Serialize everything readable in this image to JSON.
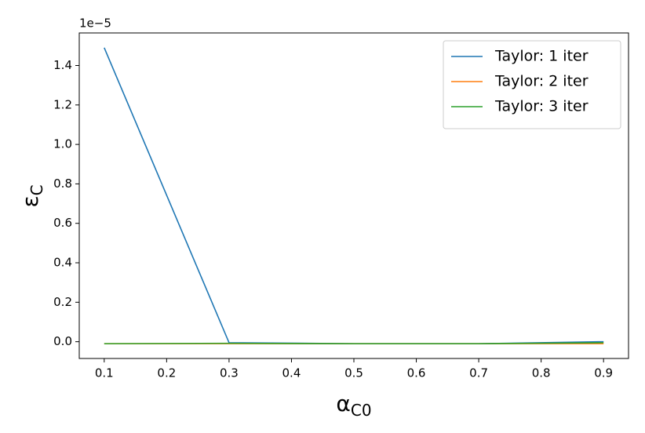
{
  "chart_data": {
    "type": "line",
    "xlabel": {
      "symbol": "α",
      "subscript": "C0"
    },
    "ylabel": {
      "symbol": "ε",
      "subscript": "C"
    },
    "y_offset_label": "1e−5",
    "x": [
      0.1,
      0.3,
      0.5,
      0.7,
      0.9
    ],
    "series": [
      {
        "name": "Taylor: 1 iter",
        "color": "#1f77b4",
        "values": [
          1.49,
          -0.005,
          -0.01,
          -0.01,
          0.0
        ]
      },
      {
        "name": "Taylor: 2 iter",
        "color": "#ff7f0e",
        "values": [
          -0.01,
          -0.01,
          -0.01,
          -0.01,
          -0.01
        ]
      },
      {
        "name": "Taylor: 3 iter",
        "color": "#2ca02c",
        "values": [
          -0.01,
          -0.008,
          -0.01,
          -0.01,
          -0.005
        ]
      }
    ],
    "xlim": [
      0.06,
      0.94
    ],
    "xticks": [
      0.1,
      0.2,
      0.3,
      0.4,
      0.5,
      0.6,
      0.7,
      0.8,
      0.9
    ],
    "ylim": [
      -0.085,
      1.565
    ],
    "yticks": [
      {
        "value": 0,
        "label": "0.0"
      },
      0.2,
      0.4,
      0.6,
      0.8,
      {
        "value": 1,
        "label": "1.0"
      },
      1.2,
      1.4
    ],
    "grid": false,
    "legend": "upper right"
  }
}
